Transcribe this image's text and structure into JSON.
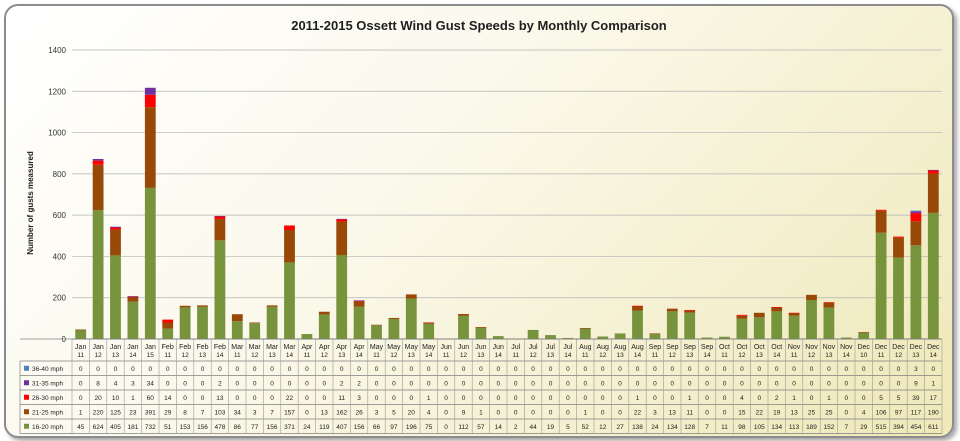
{
  "chart_data": {
    "type": "bar",
    "stacked": true,
    "title": "2011-2015 Ossett Wind Gust Speeds by Monthly Comparison",
    "ylabel": "Number of gusts measured",
    "xlabel": "",
    "ylim": [
      0,
      1400
    ],
    "y_ticks": [
      "0",
      "200",
      "400",
      "600",
      "800",
      "1000",
      "1200",
      "1400"
    ],
    "grid": true,
    "legend": "table-left",
    "categories": [
      {
        "m": "Jan",
        "y": "11"
      },
      {
        "m": "Jan",
        "y": "12"
      },
      {
        "m": "Jan",
        "y": "13"
      },
      {
        "m": "Jan",
        "y": "14"
      },
      {
        "m": "Jan",
        "y": "15"
      },
      {
        "m": "Feb",
        "y": "11"
      },
      {
        "m": "Feb",
        "y": "12"
      },
      {
        "m": "Feb",
        "y": "13"
      },
      {
        "m": "Feb",
        "y": "14"
      },
      {
        "m": "Mar",
        "y": "11"
      },
      {
        "m": "Mar",
        "y": "12"
      },
      {
        "m": "Mar",
        "y": "13"
      },
      {
        "m": "Mar",
        "y": "14"
      },
      {
        "m": "Apr",
        "y": "11"
      },
      {
        "m": "Apr",
        "y": "12"
      },
      {
        "m": "Apr",
        "y": "13"
      },
      {
        "m": "Apr",
        "y": "14"
      },
      {
        "m": "May",
        "y": "11"
      },
      {
        "m": "May",
        "y": "12"
      },
      {
        "m": "May",
        "y": "13"
      },
      {
        "m": "May",
        "y": "14"
      },
      {
        "m": "Jun",
        "y": "11"
      },
      {
        "m": "Jun",
        "y": "12"
      },
      {
        "m": "Jun",
        "y": "13"
      },
      {
        "m": "Jun",
        "y": "14"
      },
      {
        "m": "Jul",
        "y": "11"
      },
      {
        "m": "Jul",
        "y": "12"
      },
      {
        "m": "Jul",
        "y": "13"
      },
      {
        "m": "Jul",
        "y": "14"
      },
      {
        "m": "Aug",
        "y": "11"
      },
      {
        "m": "Aug",
        "y": "12"
      },
      {
        "m": "Aug",
        "y": "13"
      },
      {
        "m": "Aug",
        "y": "14"
      },
      {
        "m": "Sep",
        "y": "11"
      },
      {
        "m": "Sep",
        "y": "12"
      },
      {
        "m": "Sep",
        "y": "13"
      },
      {
        "m": "Sep",
        "y": "14"
      },
      {
        "m": "Oct",
        "y": "11"
      },
      {
        "m": "Oct",
        "y": "12"
      },
      {
        "m": "Oct",
        "y": "13"
      },
      {
        "m": "Oct",
        "y": "14"
      },
      {
        "m": "Nov",
        "y": "11"
      },
      {
        "m": "Nov",
        "y": "12"
      },
      {
        "m": "Nov",
        "y": "13"
      },
      {
        "m": "Nov",
        "y": "14"
      },
      {
        "m": "Dec",
        "y": "10"
      },
      {
        "m": "Dec",
        "y": "11"
      },
      {
        "m": "Dec",
        "y": "12"
      },
      {
        "m": "Dec",
        "y": "13"
      },
      {
        "m": "Dec",
        "y": "14"
      }
    ],
    "series": [
      {
        "name": "36-40 mph",
        "color": "#4f81bd",
        "values": [
          0,
          0,
          0,
          0,
          0,
          0,
          0,
          0,
          0,
          0,
          0,
          0,
          0,
          0,
          0,
          0,
          0,
          0,
          0,
          0,
          0,
          0,
          0,
          0,
          0,
          0,
          0,
          0,
          0,
          0,
          0,
          0,
          0,
          0,
          0,
          0,
          0,
          0,
          0,
          0,
          0,
          0,
          0,
          0,
          0,
          0,
          0,
          0,
          3,
          0
        ]
      },
      {
        "name": "31-35 mph",
        "color": "#7030a0",
        "values": [
          0,
          8,
          4,
          3,
          34,
          0,
          0,
          0,
          2,
          0,
          0,
          0,
          0,
          0,
          0,
          2,
          2,
          0,
          0,
          0,
          0,
          0,
          0,
          0,
          0,
          0,
          0,
          0,
          0,
          0,
          0,
          0,
          0,
          0,
          0,
          0,
          0,
          0,
          0,
          0,
          0,
          0,
          0,
          0,
          0,
          0,
          0,
          0,
          9,
          1
        ]
      },
      {
        "name": "26-30 mph",
        "color": "#ff0000",
        "values": [
          0,
          20,
          10,
          1,
          60,
          14,
          0,
          0,
          13,
          0,
          0,
          0,
          22,
          0,
          0,
          11,
          3,
          0,
          0,
          0,
          1,
          0,
          0,
          0,
          0,
          0,
          0,
          0,
          0,
          0,
          0,
          0,
          1,
          0,
          0,
          1,
          0,
          0,
          4,
          0,
          2,
          1,
          0,
          1,
          0,
          0,
          5,
          5,
          39,
          17
        ]
      },
      {
        "name": "21-25 mph",
        "color": "#984807",
        "values": [
          1,
          220,
          125,
          23,
          391,
          29,
          8,
          7,
          103,
          34,
          3,
          7,
          157,
          0,
          13,
          162,
          26,
          3,
          5,
          20,
          4,
          0,
          9,
          1,
          0,
          0,
          0,
          0,
          0,
          1,
          0,
          0,
          22,
          3,
          13,
          11,
          0,
          0,
          15,
          22,
          19,
          13,
          25,
          25,
          0,
          4,
          106,
          97,
          117,
          190
        ]
      },
      {
        "name": "16-20 mph",
        "color": "#77933c",
        "values": [
          45,
          624,
          405,
          181,
          732,
          51,
          153,
          156,
          478,
          86,
          77,
          156,
          371,
          24,
          119,
          407,
          156,
          66,
          97,
          196,
          75,
          0,
          112,
          57,
          14,
          2,
          44,
          19,
          5,
          52,
          12,
          27,
          138,
          24,
          134,
          128,
          7,
          11,
          98,
          105,
          134,
          113,
          189,
          152,
          7,
          29,
          515,
          394,
          454,
          611
        ]
      }
    ]
  }
}
